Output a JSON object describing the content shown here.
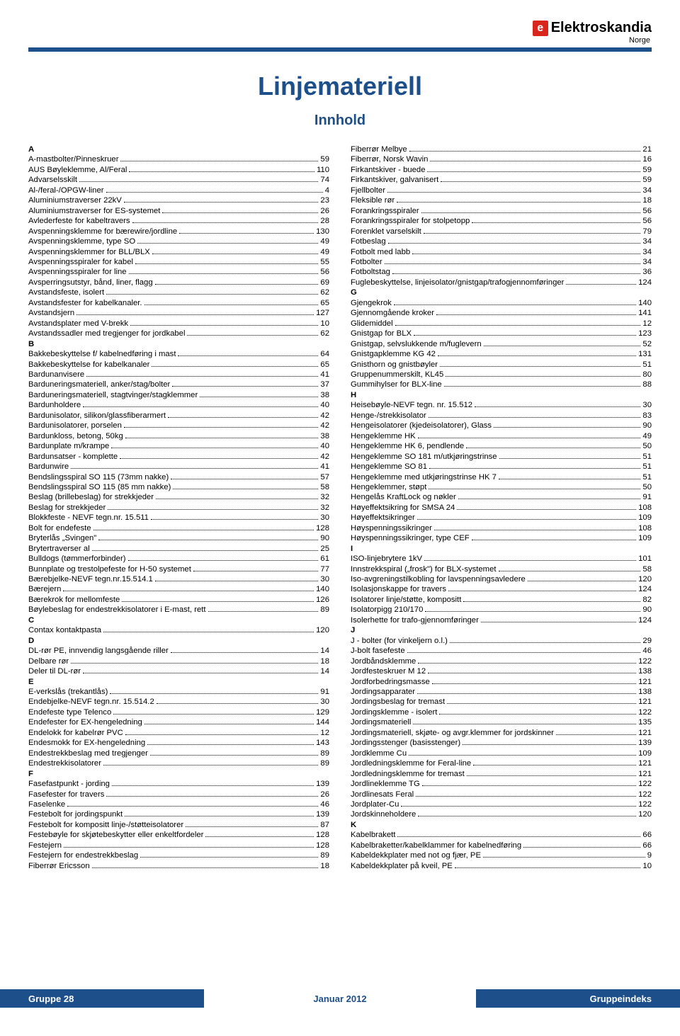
{
  "brand": {
    "mark": "e",
    "name": "Elektroskandia",
    "country": "Norge"
  },
  "title": "Linjemateriell",
  "subtitle": "Innhold",
  "footer": {
    "left": "Gruppe 28",
    "center": "Januar 2012",
    "right": "Gruppeindeks"
  },
  "colors": {
    "brand_blue": "#1d4f8b",
    "brand_red": "#d9261c",
    "text": "#000000",
    "background": "#ffffff"
  },
  "left_column": [
    {
      "type": "letter",
      "text": "A"
    },
    {
      "type": "entry",
      "label": "A-mastbolter/Pinneskruer",
      "page": "59"
    },
    {
      "type": "entry",
      "label": "AUS Bøyleklemme, Al/Feral",
      "page": "110"
    },
    {
      "type": "entry",
      "label": "Advarselsskilt",
      "page": "74"
    },
    {
      "type": "entry",
      "label": "Al-/feral-/OPGW-liner",
      "page": "4"
    },
    {
      "type": "entry",
      "label": "Aluminiumstraverser 22kV",
      "page": "23"
    },
    {
      "type": "entry",
      "label": "Aluminiumstraverser for ES-systemet",
      "page": "26"
    },
    {
      "type": "entry",
      "label": "Avlederfeste for kabeltravers",
      "page": "28"
    },
    {
      "type": "entry",
      "label": "Avspenningsklemme for bærewire/jordline",
      "page": "130"
    },
    {
      "type": "entry",
      "label": "Avspenningsklemme, type SO",
      "page": "49"
    },
    {
      "type": "entry",
      "label": "Avspenningsklemmer for BLL/BLX",
      "page": "49"
    },
    {
      "type": "entry",
      "label": "Avspenningsspiraler for kabel",
      "page": "55"
    },
    {
      "type": "entry",
      "label": "Avspenningsspiraler for line",
      "page": "56"
    },
    {
      "type": "entry",
      "label": "Avsperringsutstyr, bånd, liner, flagg",
      "page": "69"
    },
    {
      "type": "entry",
      "label": "Avstandsfeste, isolert",
      "page": "62"
    },
    {
      "type": "entry",
      "label": "Avstandsfester for kabelkanaler.",
      "page": "65"
    },
    {
      "type": "entry",
      "label": "Avstandsjern",
      "page": "127"
    },
    {
      "type": "entry",
      "label": "Avstandsplater med V-brekk",
      "page": "10"
    },
    {
      "type": "entry",
      "label": "Avstandssadler med tregjenger for jordkabel",
      "page": "62"
    },
    {
      "type": "letter",
      "text": "B"
    },
    {
      "type": "entry",
      "label": "Bakkebeskyttelse f/ kabelnedføring i mast",
      "page": "64"
    },
    {
      "type": "entry",
      "label": "Bakkebeskyttelse for kabelkanaler",
      "page": "65"
    },
    {
      "type": "entry",
      "label": "Bardunanvisere",
      "page": "41"
    },
    {
      "type": "entry",
      "label": "Barduneringsmateriell, anker/stag/bolter",
      "page": "37"
    },
    {
      "type": "entry",
      "label": "Barduneringsmateriell, stagtvinger/stagklemmer",
      "page": "38"
    },
    {
      "type": "entry",
      "label": "Bardunholdere",
      "page": "40"
    },
    {
      "type": "entry",
      "label": "Bardunisolator, silikon/glassfiberarmert",
      "page": "42"
    },
    {
      "type": "entry",
      "label": "Bardunisolatorer, porselen",
      "page": "42"
    },
    {
      "type": "entry",
      "label": "Bardunkloss, betong, 50kg",
      "page": "38"
    },
    {
      "type": "entry",
      "label": "Bardunplate m/krampe",
      "page": "40"
    },
    {
      "type": "entry",
      "label": "Bardunsatser - komplette",
      "page": "42"
    },
    {
      "type": "entry",
      "label": "Bardunwire",
      "page": "41"
    },
    {
      "type": "entry",
      "label": "Bendslingsspiral SO 115 (73mm nakke)",
      "page": "57"
    },
    {
      "type": "entry",
      "label": "Bendslingsspiral SO 115 (85 mm nakke)",
      "page": "58"
    },
    {
      "type": "entry",
      "label": "Beslag (brillebeslag) for strekkjeder",
      "page": "32"
    },
    {
      "type": "entry",
      "label": "Beslag for strekkjeder",
      "page": "32"
    },
    {
      "type": "entry",
      "label": "Blokkfeste - NEVF tegn.nr. 15.511",
      "page": "30"
    },
    {
      "type": "entry",
      "label": "Bolt for endefeste",
      "page": "128"
    },
    {
      "type": "entry",
      "label": "Bryterlås „Svingen\"",
      "page": "90"
    },
    {
      "type": "entry",
      "label": "Brytertraverser al",
      "page": "25"
    },
    {
      "type": "entry",
      "label": "Bulldogs (tømmerforbinder)",
      "page": "61"
    },
    {
      "type": "entry",
      "label": "Bunnplate og trestolpefeste for H-50 systemet",
      "page": "77"
    },
    {
      "type": "entry",
      "label": "Bærebjelke-NEVF tegn.nr.15.514.1",
      "page": "30"
    },
    {
      "type": "entry",
      "label": "Bærejern",
      "page": "140"
    },
    {
      "type": "entry",
      "label": "Bærekrok for mellomfeste",
      "page": "126"
    },
    {
      "type": "entry",
      "label": "Bøylebeslag for endestrekkisolatorer i E-mast, rett",
      "page": "89"
    },
    {
      "type": "letter",
      "text": "C"
    },
    {
      "type": "entry",
      "label": "Contax kontaktpasta",
      "page": "120"
    },
    {
      "type": "letter",
      "text": "D"
    },
    {
      "type": "entry",
      "label": "DL-rør PE, innvendig langsgående riller",
      "page": "14"
    },
    {
      "type": "entry",
      "label": "Delbare rør",
      "page": "18"
    },
    {
      "type": "entry",
      "label": "Deler til DL-rør",
      "page": "14"
    },
    {
      "type": "letter",
      "text": "E"
    },
    {
      "type": "entry",
      "label": "E-verkslås (trekantlås)",
      "page": "91"
    },
    {
      "type": "entry",
      "label": "Endebjelke-NEVF tegn.nr. 15.514.2",
      "page": "30"
    },
    {
      "type": "entry",
      "label": "Endefeste type Telenco",
      "page": "129"
    },
    {
      "type": "entry",
      "label": "Endefester for EX-hengeledning",
      "page": "144"
    },
    {
      "type": "entry",
      "label": "Endelokk for kabelrør PVC",
      "page": "12"
    },
    {
      "type": "entry",
      "label": "Endesmokk for EX-hengeledning",
      "page": "143"
    },
    {
      "type": "entry",
      "label": "Endestrekkbeslag med tregjenger",
      "page": "89"
    },
    {
      "type": "entry",
      "label": "Endestrekkisolatorer",
      "page": "89"
    },
    {
      "type": "letter",
      "text": "F"
    },
    {
      "type": "entry",
      "label": "Fasefastpunkt - jording",
      "page": "139"
    },
    {
      "type": "entry",
      "label": "Fasefester for travers",
      "page": "26"
    },
    {
      "type": "entry",
      "label": "Faselenke",
      "page": "46"
    },
    {
      "type": "entry",
      "label": "Festebolt for jordingspunkt",
      "page": "139"
    },
    {
      "type": "entry",
      "label": "Festebolt for kompositt linje-/støtteisolatorer",
      "page": "87"
    },
    {
      "type": "entry",
      "label": "Festebøyle for skjøtebeskytter eller enkeltfordeler",
      "page": "128"
    },
    {
      "type": "entry",
      "label": "Festejern",
      "page": "128"
    },
    {
      "type": "entry",
      "label": "Festejern for endestrekkbeslag",
      "page": "89"
    },
    {
      "type": "entry",
      "label": "Fiberrør Ericsson",
      "page": "18"
    }
  ],
  "right_column": [
    {
      "type": "entry",
      "label": "Fiberrør Melbye",
      "page": "21"
    },
    {
      "type": "entry",
      "label": "Fiberrør, Norsk Wavin",
      "page": "16"
    },
    {
      "type": "entry",
      "label": "Firkantskiver - buede",
      "page": "59"
    },
    {
      "type": "entry",
      "label": "Firkantskiver, galvanisert",
      "page": "59"
    },
    {
      "type": "entry",
      "label": "Fjellbolter",
      "page": "34"
    },
    {
      "type": "entry",
      "label": "Fleksible rør",
      "page": "18"
    },
    {
      "type": "entry",
      "label": "Forankringsspiraler",
      "page": "56"
    },
    {
      "type": "entry",
      "label": "Forankringsspiraler for stolpetopp",
      "page": "56"
    },
    {
      "type": "entry",
      "label": "Forenklet varselskilt",
      "page": "79"
    },
    {
      "type": "entry",
      "label": "Fotbeslag",
      "page": "34"
    },
    {
      "type": "entry",
      "label": "Fotbolt med labb",
      "page": "34"
    },
    {
      "type": "entry",
      "label": "Fotbolter",
      "page": "34"
    },
    {
      "type": "entry",
      "label": "Fotboltstag",
      "page": "36"
    },
    {
      "type": "entry",
      "label": "Fuglebeskyttelse, linjeisolator/gnistgap/trafogjennomføringer",
      "page": "124"
    },
    {
      "type": "letter",
      "text": "G"
    },
    {
      "type": "entry",
      "label": "Gjengekrok",
      "page": "140"
    },
    {
      "type": "entry",
      "label": "Gjennomgående kroker",
      "page": "141"
    },
    {
      "type": "entry",
      "label": "Glidemiddel",
      "page": "12"
    },
    {
      "type": "entry",
      "label": "Gnistgap for BLX",
      "page": "123"
    },
    {
      "type": "entry",
      "label": "Gnistgap, selvslukkende m/fuglevern",
      "page": "52"
    },
    {
      "type": "entry",
      "label": "Gnistgapklemme KG 42",
      "page": "131"
    },
    {
      "type": "entry",
      "label": "Gnisthorn og gnistbøyler",
      "page": "51"
    },
    {
      "type": "entry",
      "label": "Gruppenummerskilt, KL45",
      "page": "80"
    },
    {
      "type": "entry",
      "label": "Gummihylser for BLX-line",
      "page": "88"
    },
    {
      "type": "letter",
      "text": "H"
    },
    {
      "type": "entry",
      "label": "Heisebøyle-NEVF tegn. nr. 15.512",
      "page": "30"
    },
    {
      "type": "entry",
      "label": "Henge-/strekkisolator",
      "page": "83"
    },
    {
      "type": "entry",
      "label": "Hengeisolatorer (kjedeisolatorer), Glass",
      "page": "90"
    },
    {
      "type": "entry",
      "label": "Hengeklemme HK",
      "page": "49"
    },
    {
      "type": "entry",
      "label": "Hengeklemme HK 6, pendlende",
      "page": "50"
    },
    {
      "type": "entry",
      "label": "Hengeklemme SO 181 m/utkjøringstrinse",
      "page": "51"
    },
    {
      "type": "entry",
      "label": "Hengeklemme SO 81",
      "page": "51"
    },
    {
      "type": "entry",
      "label": "Hengeklemme med utkjøringstrinse HK 7",
      "page": "51"
    },
    {
      "type": "entry",
      "label": "Hengeklemmer, støpt",
      "page": "50"
    },
    {
      "type": "entry",
      "label": "Hengelås KraftLock og nøkler",
      "page": "91"
    },
    {
      "type": "entry",
      "label": "Høyeffektsikring for SMSA 24",
      "page": "108"
    },
    {
      "type": "entry",
      "label": "Høyeffektsikringer",
      "page": "109"
    },
    {
      "type": "entry",
      "label": "Høyspenningssikringer",
      "page": "108"
    },
    {
      "type": "entry",
      "label": "Høyspenningssikringer, type CEF",
      "page": "109"
    },
    {
      "type": "letter",
      "text": "I"
    },
    {
      "type": "entry",
      "label": "ISO-linjebrytere 1kV",
      "page": "101"
    },
    {
      "type": "entry",
      "label": "Innstrekkspiral („frosk\") for BLX-systemet",
      "page": "58"
    },
    {
      "type": "entry",
      "label": "Iso-avgreningstilkobling for lavspenningsavledere",
      "page": "120"
    },
    {
      "type": "entry",
      "label": "Isolasjonskappe for travers",
      "page": "124"
    },
    {
      "type": "entry",
      "label": "Isolatorer linje/støtte, kompositt",
      "page": "82"
    },
    {
      "type": "entry",
      "label": "Isolatorpigg 210/170",
      "page": "90"
    },
    {
      "type": "entry",
      "label": "Isolerhette for trafo-gjennomføringer",
      "page": "124"
    },
    {
      "type": "letter",
      "text": "J"
    },
    {
      "type": "entry",
      "label": "J - bolter (for vinkeljern o.l.)",
      "page": "29"
    },
    {
      "type": "entry",
      "label": "J-bolt fasefeste",
      "page": "46"
    },
    {
      "type": "entry",
      "label": "Jordbåndsklemme",
      "page": "122"
    },
    {
      "type": "entry",
      "label": "Jordfesteskruer M 12",
      "page": "138"
    },
    {
      "type": "entry",
      "label": "Jordforbedringsmasse",
      "page": "121"
    },
    {
      "type": "entry",
      "label": "Jordingsapparater",
      "page": "138"
    },
    {
      "type": "entry",
      "label": "Jordingsbeslag for tremast",
      "page": "121"
    },
    {
      "type": "entry",
      "label": "Jordingsklemme - isolert",
      "page": "122"
    },
    {
      "type": "entry",
      "label": "Jordingsmateriell",
      "page": "135"
    },
    {
      "type": "entry",
      "label": "Jordingsmateriell, skjøte- og avgr.klemmer for jordskinner",
      "page": "121"
    },
    {
      "type": "entry",
      "label": "Jordingsstenger (basisstenger)",
      "page": "139"
    },
    {
      "type": "entry",
      "label": "Jordklemme Cu",
      "page": "109"
    },
    {
      "type": "entry",
      "label": "Jordledningsklemme for Feral-line",
      "page": "121"
    },
    {
      "type": "entry",
      "label": "Jordledningsklemme for tremast",
      "page": "121"
    },
    {
      "type": "entry",
      "label": "Jordlineklemme TG",
      "page": "122"
    },
    {
      "type": "entry",
      "label": "Jordlinesats Feral",
      "page": "122"
    },
    {
      "type": "entry",
      "label": "Jordplater-Cu",
      "page": "122"
    },
    {
      "type": "entry",
      "label": "Jordskinneholdere",
      "page": "120"
    },
    {
      "type": "letter",
      "text": "K"
    },
    {
      "type": "entry",
      "label": "Kabelbrakett",
      "page": "66"
    },
    {
      "type": "entry",
      "label": "Kabelbraketter/kabelklammer for kabelnedføring",
      "page": "66"
    },
    {
      "type": "entry",
      "label": "Kabeldekkplater med not og fjær, PE",
      "page": "9"
    },
    {
      "type": "entry",
      "label": "Kabeldekkplater på kveil, PE",
      "page": "10"
    }
  ]
}
